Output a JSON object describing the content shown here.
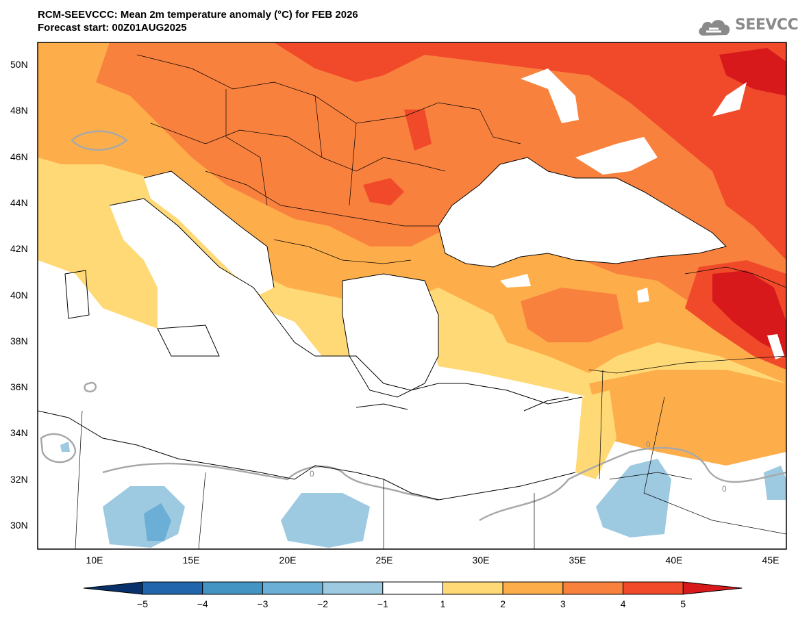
{
  "header": {
    "title_line1": "RCM-SEEVCCC: Mean 2m temperature anomaly (°C) for FEB 2026",
    "title_line2": "Forecast start: 00Z01AUG2025"
  },
  "logo": {
    "text": "SEEVCCC",
    "icon": "cloud-icon"
  },
  "map": {
    "lat_labels": [
      "50N",
      "48N",
      "46N",
      "44N",
      "42N",
      "40N",
      "38N",
      "36N",
      "34N",
      "32N",
      "30N"
    ],
    "lon_labels": [
      "10E",
      "15E",
      "20E",
      "25E",
      "30E",
      "35E",
      "40E",
      "45E"
    ],
    "contour_label": "0"
  },
  "colorbar": {
    "labels": [
      "−5",
      "−4",
      "−3",
      "−2",
      "−1",
      "1",
      "2",
      "3",
      "4",
      "5"
    ],
    "colors": [
      "#08306b",
      "#2166ac",
      "#4393c3",
      "#6baed6",
      "#9ecae1",
      "#ffffff",
      "#fed976",
      "#fdae4b",
      "#f9813e",
      "#f04a2a",
      "#d7191c"
    ]
  }
}
